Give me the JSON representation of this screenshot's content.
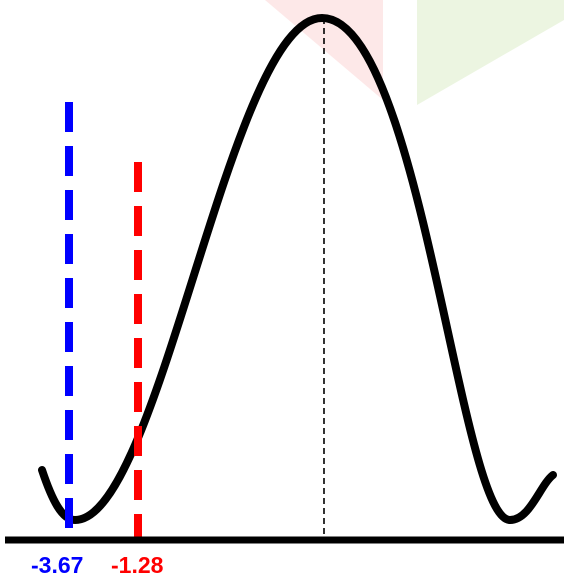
{
  "diagram": {
    "colors": {
      "curve": "#000000",
      "axis": "#000000",
      "mean_line": "#000000",
      "left_marker": "#0000ff",
      "right_marker": "#ff0000",
      "bg_shape_pink": "#fde8e8",
      "bg_shape_green": "#ecf5e1"
    },
    "markers": [
      {
        "label": "-3.67",
        "color": "#0000ff"
      },
      {
        "label": "-1.28",
        "color": "#ff0000"
      }
    ]
  }
}
